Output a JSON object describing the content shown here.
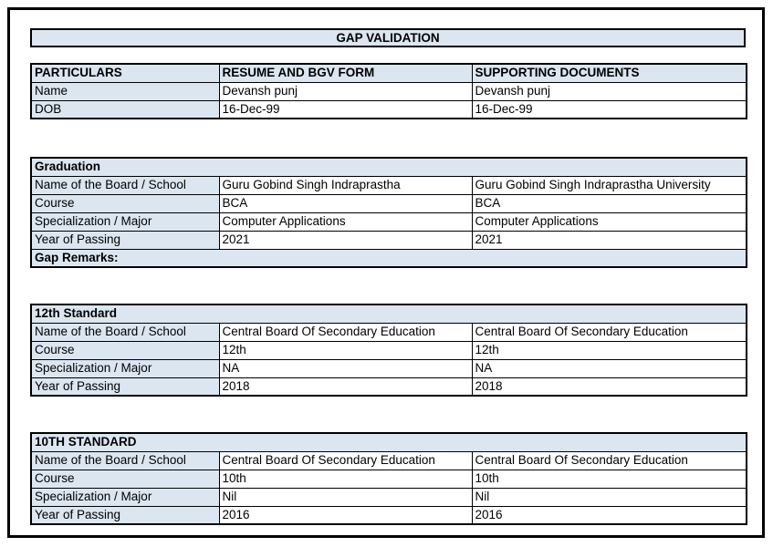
{
  "colors": {
    "header_fill": "#dce6f1",
    "border": "#000000",
    "page_background": "#ffffff"
  },
  "document": {
    "title": "GAP VALIDATION"
  },
  "particulars_table": {
    "columns": [
      "PARTICULARS",
      "RESUME AND BGV FORM",
      "SUPPORTING DOCUMENTS"
    ],
    "rows": [
      {
        "label": "Name",
        "resume": "Devansh punj",
        "supporting": "Devansh punj"
      },
      {
        "label": "DOB",
        "resume": "16-Dec-99",
        "supporting": "16-Dec-99"
      }
    ]
  },
  "sections": [
    {
      "title": "Graduation",
      "rows": [
        {
          "label": "Name of the Board / School",
          "resume": "Guru Gobind Singh Indraprastha",
          "supporting": "Guru Gobind Singh Indraprastha University"
        },
        {
          "label": "Course",
          "resume": "BCA",
          "supporting": "BCA"
        },
        {
          "label": "Specialization / Major",
          "resume": "Computer Applications",
          "supporting": "Computer Applications"
        },
        {
          "label": "Year of Passing",
          "resume": "2021",
          "supporting": "2021"
        }
      ],
      "footer": "Gap Remarks:"
    },
    {
      "title": "12th Standard",
      "rows": [
        {
          "label": "Name of the Board / School",
          "resume": "Central Board Of Secondary Education",
          "supporting": "Central Board Of Secondary Education"
        },
        {
          "label": "Course",
          "resume": "12th",
          "supporting": "12th"
        },
        {
          "label": "Specialization / Major",
          "resume": "NA",
          "supporting": "NA"
        },
        {
          "label": "Year of Passing",
          "resume": "2018",
          "supporting": "2018"
        }
      ]
    },
    {
      "title": "10TH STANDARD",
      "rows": [
        {
          "label": "Name of the Board / School",
          "resume": "Central Board Of Secondary Education",
          "supporting": "Central Board Of Secondary Education"
        },
        {
          "label": "Course",
          "resume": "10th",
          "supporting": "10th"
        },
        {
          "label": "Specialization / Major",
          "resume": "Nil",
          "supporting": "Nil"
        },
        {
          "label": "Year of Passing",
          "resume": "2016",
          "supporting": "2016"
        }
      ]
    }
  ]
}
